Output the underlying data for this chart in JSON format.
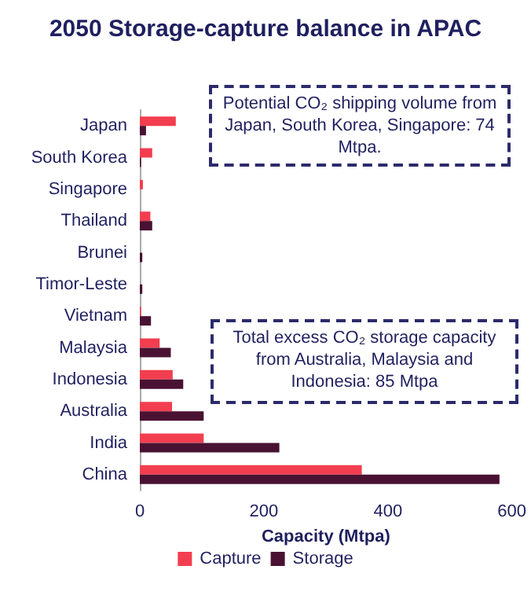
{
  "chart_data": {
    "type": "bar",
    "orientation": "horizontal",
    "title": "2050 Storage-capture balance in APAC",
    "xlabel": "Capacity (Mtpa)",
    "categories": [
      "Japan",
      "South Korea",
      "Singapore",
      "Thailand",
      "Brunei",
      "Timor-Leste",
      "Vietnam",
      "Malaysia",
      "Indonesia",
      "Australia",
      "India",
      "China"
    ],
    "series": [
      {
        "name": "Capture",
        "color": "#f23e4f",
        "values": [
          58,
          20,
          5,
          17,
          0,
          0,
          2,
          32,
          53,
          52,
          103,
          358
        ]
      },
      {
        "name": "Storage",
        "color": "#4a1232",
        "values": [
          10,
          2,
          0,
          20,
          4,
          4,
          18,
          50,
          70,
          103,
          225,
          580
        ]
      }
    ],
    "xlim": [
      0,
      600
    ],
    "xticks": [
      0,
      200,
      400,
      600
    ],
    "grid": false,
    "legend": "bottom",
    "annotations": [
      "Potential CO₂ shipping volume from Japan, South Korea, Singapore: 74 Mtpa.",
      "Total excess CO₂ storage capacity from Australia, Malaysia and Indonesia: 85 Mtpa"
    ]
  }
}
